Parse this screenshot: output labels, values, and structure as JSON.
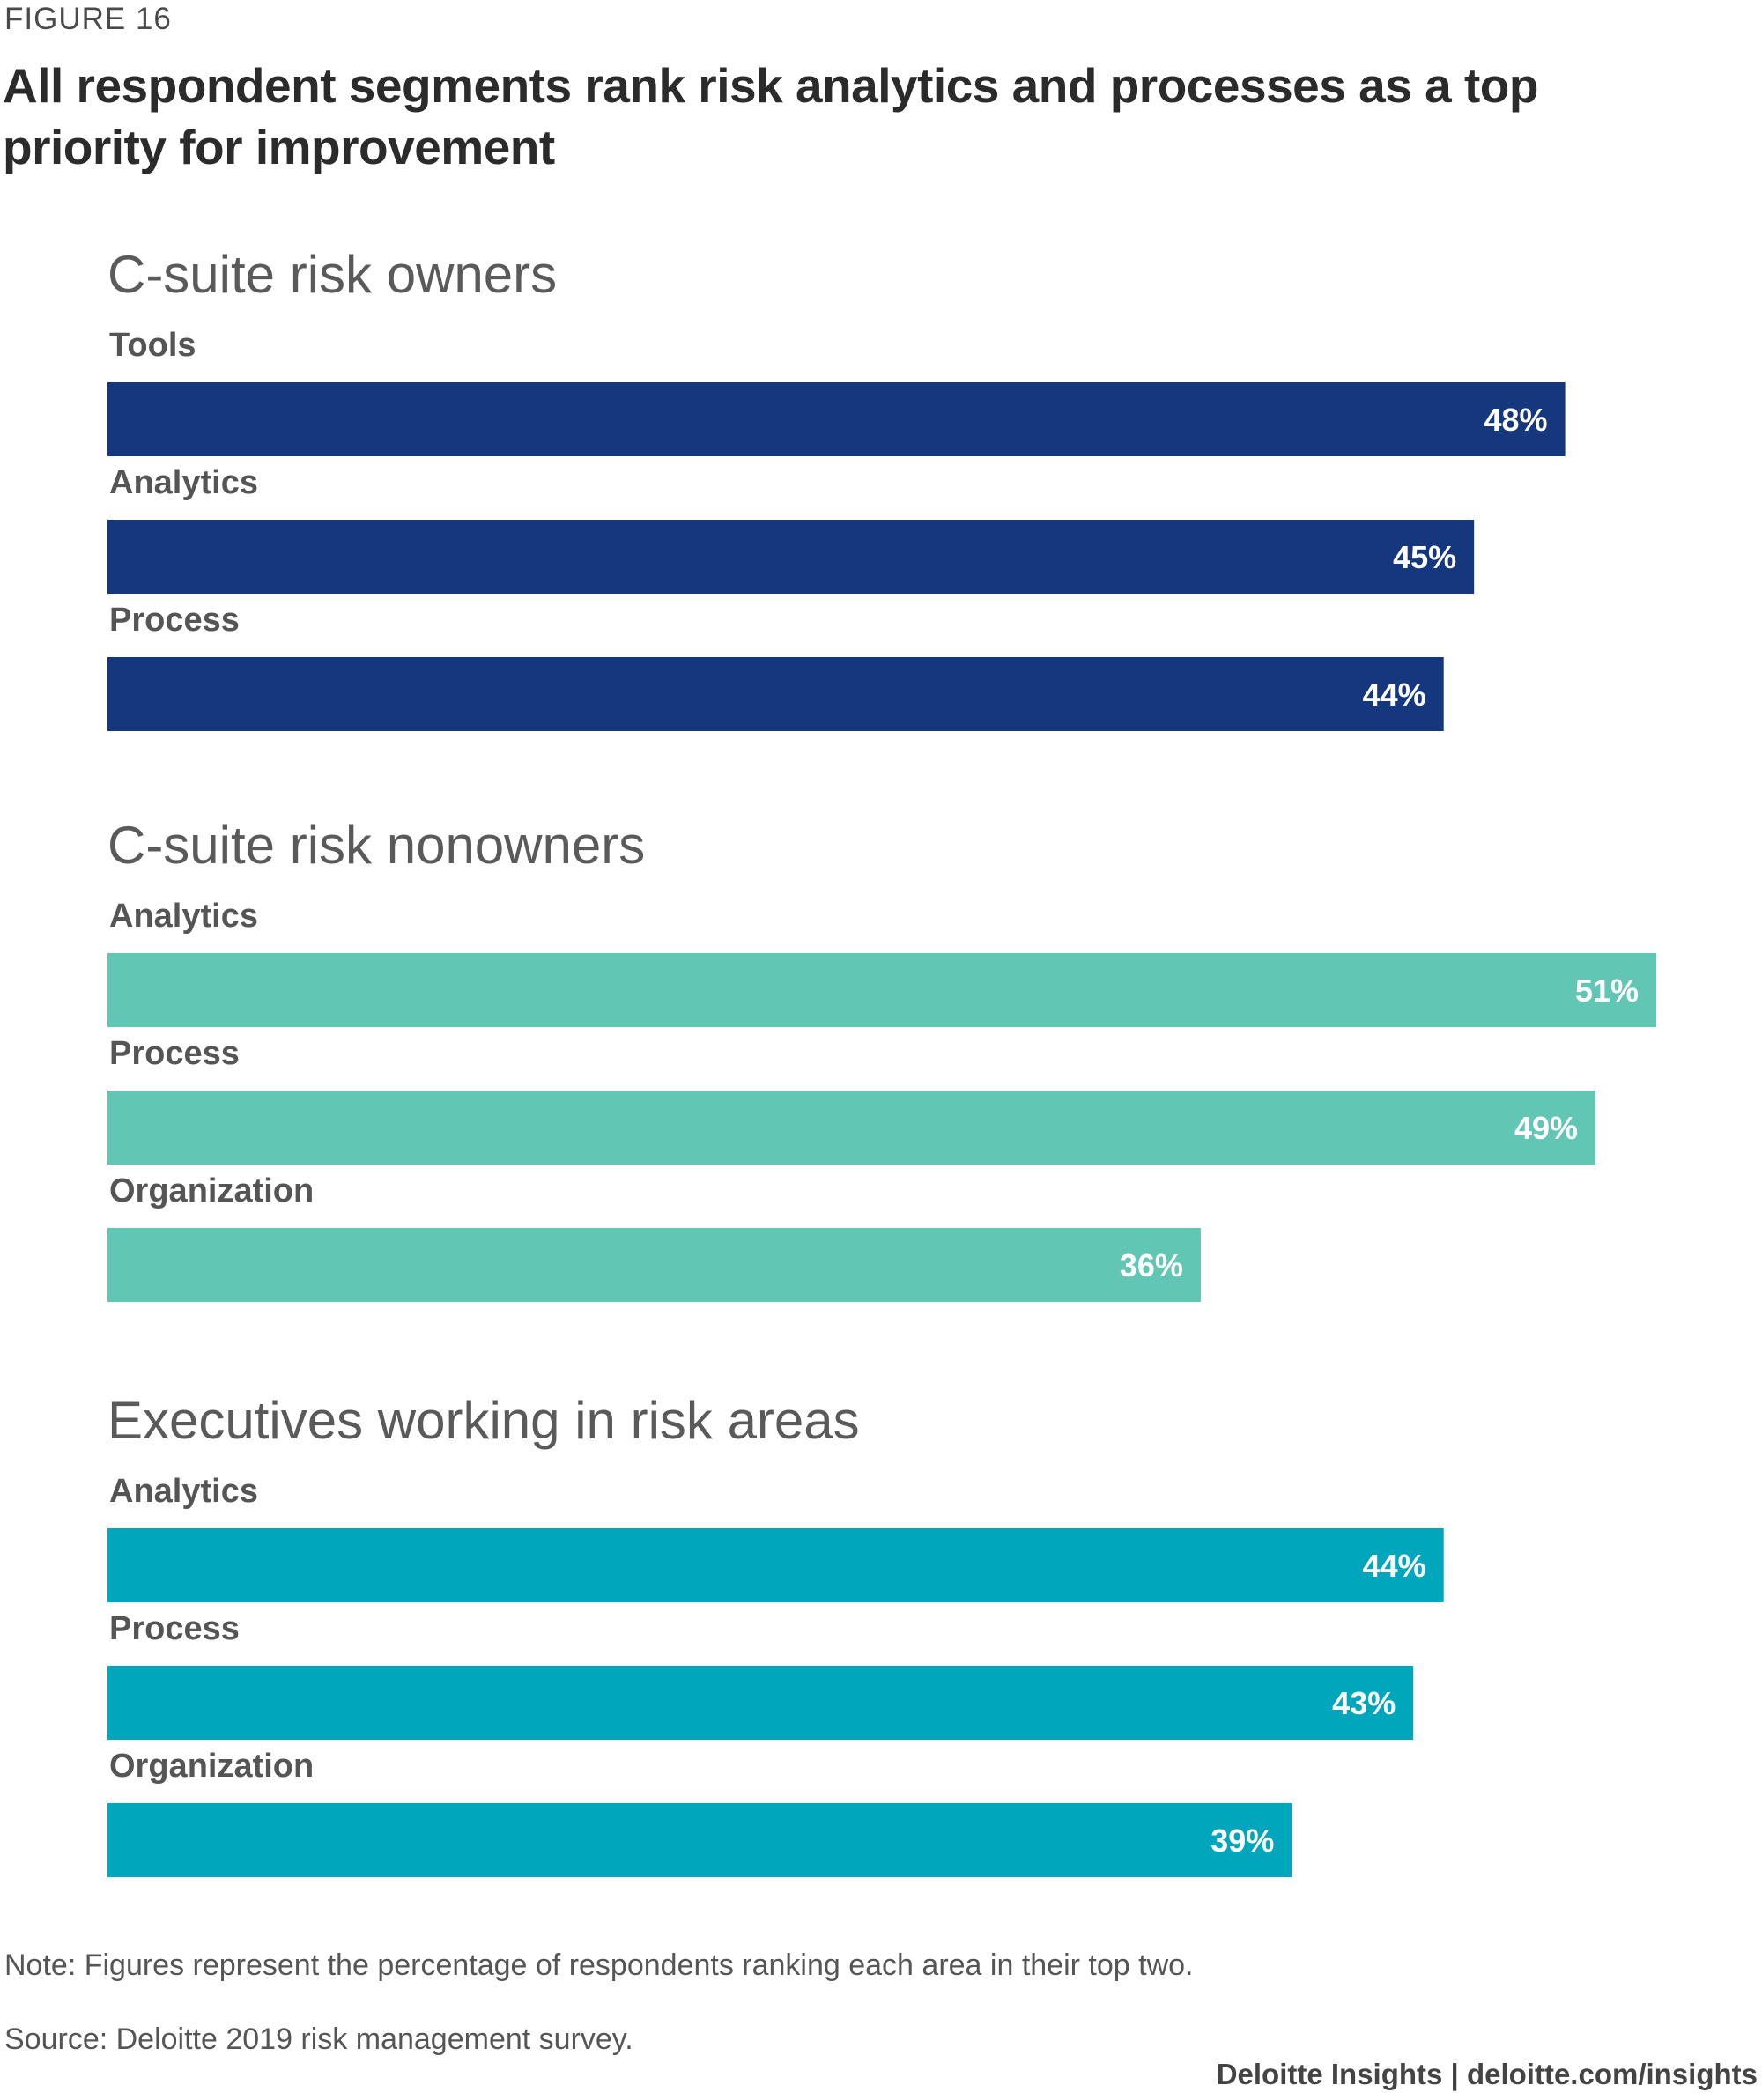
{
  "figure_label": "FIGURE 16",
  "title": "All respondent segments rank risk analytics and processes as a top priority for improvement",
  "note": "Note: Figures represent the percentage of respondents ranking each area in their top two.",
  "source": "Source: Deloitte 2019 risk management survey.",
  "footer": "Deloitte Insights | deloitte.com/insights",
  "colors": {
    "owners": "#14377d",
    "nonowners": "#62c6b4",
    "executives": "#00a7bc"
  },
  "chart_data": {
    "type": "bar",
    "orientation": "horizontal",
    "unit": "%",
    "xlim": [
      0,
      51
    ],
    "panels": [
      {
        "name": "C-suite risk owners",
        "color_key": "owners",
        "categories": [
          "Tools",
          "Analytics",
          "Process"
        ],
        "values": [
          48,
          45,
          44
        ],
        "labels": [
          "48%",
          "45%",
          "44%"
        ]
      },
      {
        "name": "C-suite risk nonowners",
        "color_key": "nonowners",
        "categories": [
          "Analytics",
          "Process",
          "Organization"
        ],
        "values": [
          51,
          49,
          36
        ],
        "labels": [
          "51%",
          "49%",
          "36%"
        ]
      },
      {
        "name": "Executives working in risk areas",
        "color_key": "executives",
        "categories": [
          "Analytics",
          "Process",
          "Organization"
        ],
        "values": [
          44,
          43,
          39
        ],
        "labels": [
          "44%",
          "43%",
          "39%"
        ]
      }
    ]
  }
}
